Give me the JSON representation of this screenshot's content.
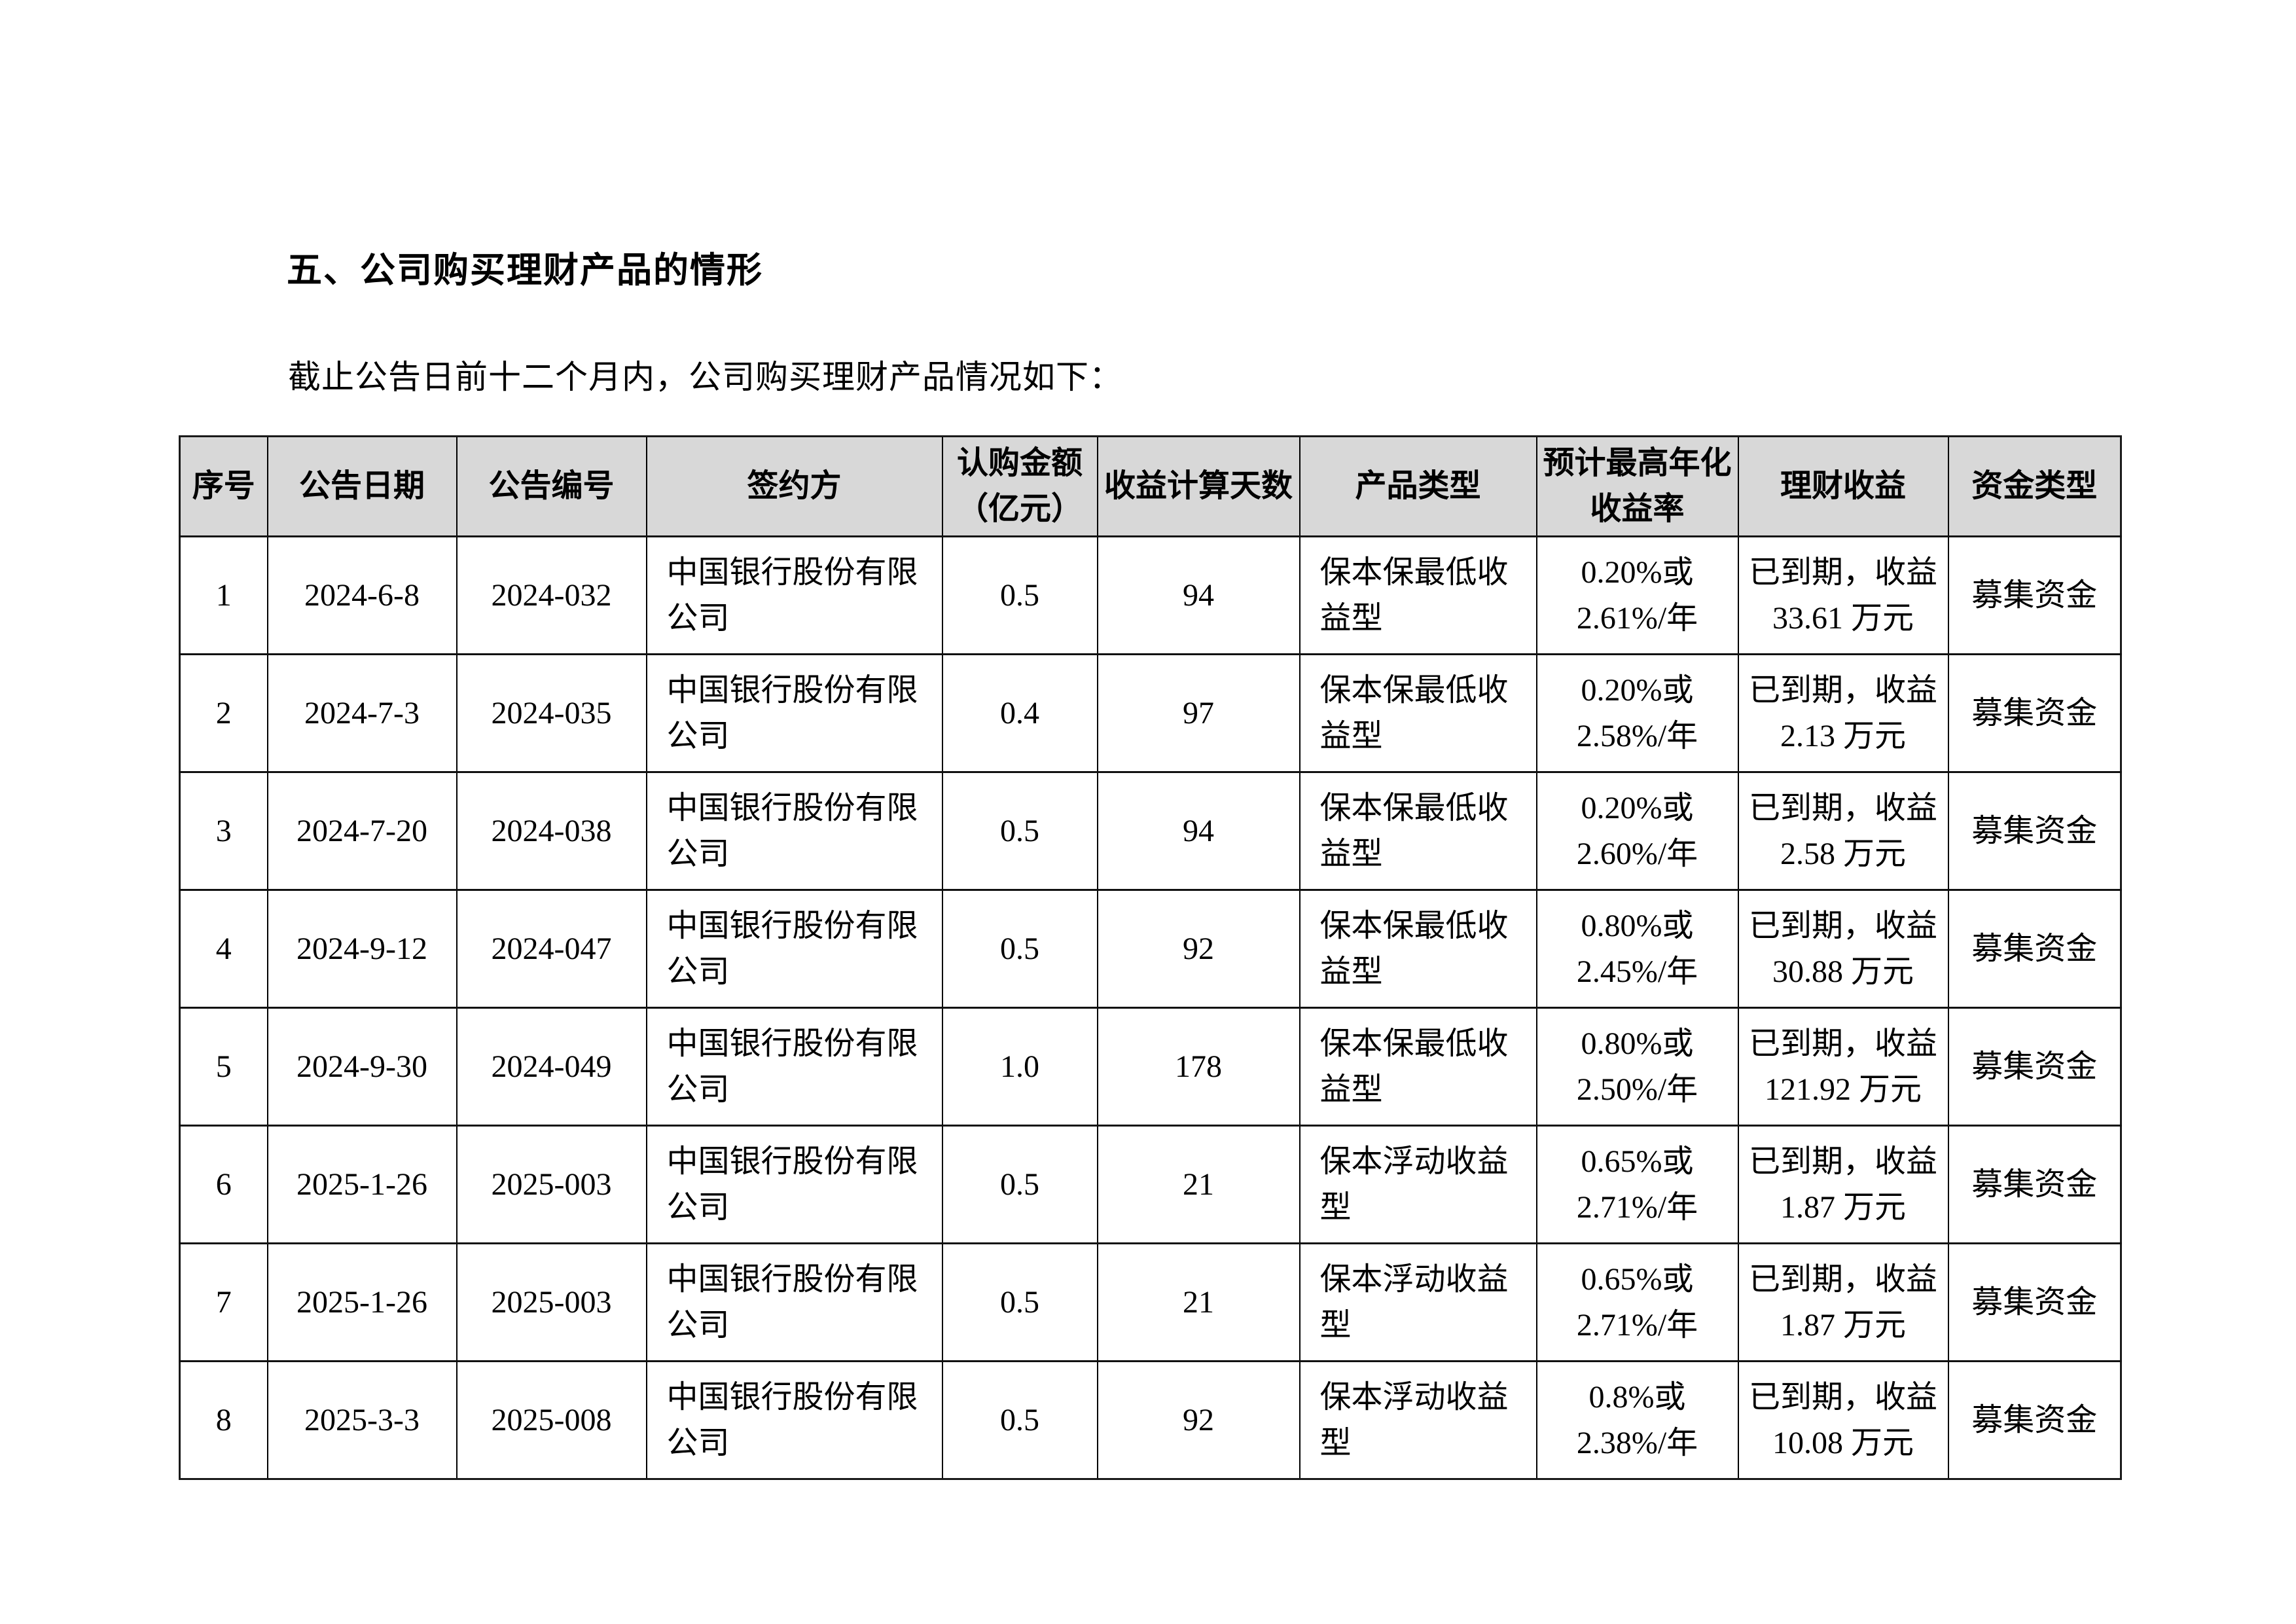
{
  "page": {
    "heading": "五、公司购买理财产品的情形",
    "intro": "截止公告日前十二个月内，公司购买理财产品情况如下："
  },
  "table": {
    "headers": [
      "序号",
      "公告日期",
      "公告编号",
      "签约方",
      "认购金额\n（亿元）",
      "收益计算天数",
      "产品类型",
      "预计最高年化\n收益率",
      "理财收益",
      "资金类型"
    ],
    "rows": [
      [
        "1",
        "2024-6-8",
        "2024-032",
        "中国银行股份有限\n公司",
        "0.5",
        "94",
        "保本保最低收\n益型",
        "0.20%或\n2.61%/年",
        "已到期，收益\n33.61 万元",
        "募集资金"
      ],
      [
        "2",
        "2024-7-3",
        "2024-035",
        "中国银行股份有限\n公司",
        "0.4",
        "97",
        "保本保最低收\n益型",
        "0.20%或\n2.58%/年",
        "已到期，收益\n2.13 万元",
        "募集资金"
      ],
      [
        "3",
        "2024-7-20",
        "2024-038",
        "中国银行股份有限\n公司",
        "0.5",
        "94",
        "保本保最低收\n益型",
        "0.20%或\n2.60%/年",
        "已到期，收益\n2.58 万元",
        "募集资金"
      ],
      [
        "4",
        "2024-9-12",
        "2024-047",
        "中国银行股份有限\n公司",
        "0.5",
        "92",
        "保本保最低收\n益型",
        "0.80%或\n2.45%/年",
        "已到期，收益\n30.88 万元",
        "募集资金"
      ],
      [
        "5",
        "2024-9-30",
        "2024-049",
        "中国银行股份有限\n公司",
        "1.0",
        "178",
        "保本保最低收\n益型",
        "0.80%或\n2.50%/年",
        "已到期，收益\n121.92 万元",
        "募集资金"
      ],
      [
        "6",
        "2025-1-26",
        "2025-003",
        "中国银行股份有限\n公司",
        "0.5",
        "21",
        "保本浮动收益\n型",
        "0.65%或\n2.71%/年",
        "已到期，收益\n1.87 万元",
        "募集资金"
      ],
      [
        "7",
        "2025-1-26",
        "2025-003",
        "中国银行股份有限\n公司",
        "0.5",
        "21",
        "保本浮动收益\n型",
        "0.65%或\n2.71%/年",
        "已到期，收益\n1.87 万元",
        "募集资金"
      ],
      [
        "8",
        "2025-3-3",
        "2025-008",
        "中国银行股份有限\n公司",
        "0.5",
        "92",
        "保本浮动收益\n型",
        "0.8%或\n2.38%/年",
        "已到期，收益\n10.08 万元",
        "募集资金"
      ]
    ]
  }
}
